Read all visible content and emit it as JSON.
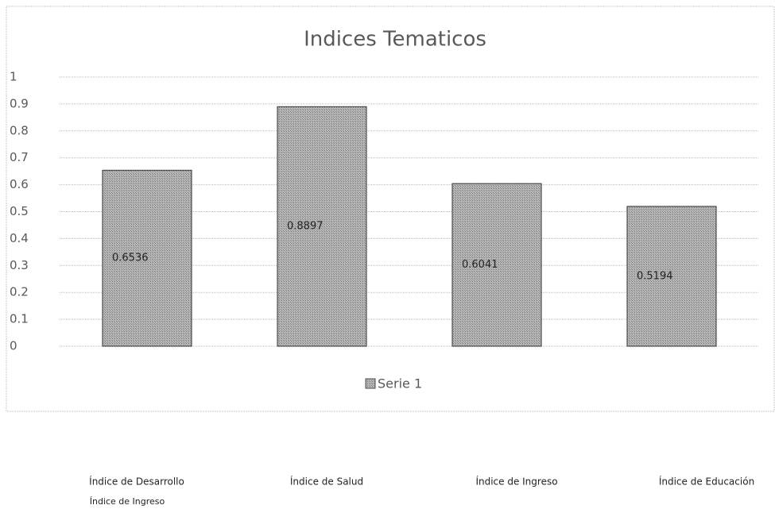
{
  "chart_data": {
    "type": "bar",
    "title": "Indices Tematicos",
    "categories": [
      "Índice de Desarrollo",
      "Índice de Salud",
      "Índice de Ingreso",
      "Índice de Educación"
    ],
    "series": [
      {
        "name": "Serie 1",
        "color": "#9a9a9a",
        "values": [
          0.6536,
          0.8897,
          0.6041,
          0.5194
        ]
      }
    ],
    "ylim": [
      0,
      1
    ],
    "yticks": [
      0,
      0.1,
      0.2,
      0.3,
      0.4,
      0.5,
      0.6,
      0.7,
      0.8,
      0.9,
      1
    ],
    "grid": true,
    "legend": "bottom",
    "annotations": [
      "Índice de Ingreso"
    ]
  }
}
